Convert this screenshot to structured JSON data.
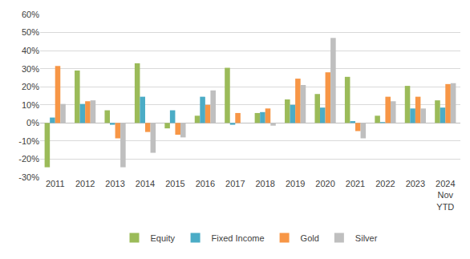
{
  "chart_data": {
    "type": "bar",
    "categories": [
      "2011",
      "2012",
      "2013",
      "2014",
      "2015",
      "2016",
      "2017",
      "2018",
      "2019",
      "2020",
      "2021",
      "2022",
      "2023",
      "2024 Nov YTD"
    ],
    "series": [
      {
        "name": "Equity",
        "color": "#9bbb59",
        "values": [
          -24.5,
          29,
          7,
          33,
          -3,
          4,
          30.5,
          5.5,
          13,
          16,
          25.5,
          4,
          20.5,
          12.5
        ]
      },
      {
        "name": "Fixed Income",
        "color": "#4bacc6",
        "values": [
          3,
          10.5,
          -1,
          14.5,
          7,
          14.5,
          -1,
          6,
          10,
          8.5,
          1,
          0.5,
          8,
          8.5
        ]
      },
      {
        "name": "Gold",
        "color": "#f79646",
        "values": [
          31.5,
          12,
          -8.5,
          -5,
          -6.5,
          10,
          5.5,
          8,
          24.5,
          28,
          -4.5,
          14.5,
          14.5,
          21.5
        ]
      },
      {
        "name": "Silver",
        "color": "#bfbfbf",
        "values": [
          10.5,
          12.5,
          -24.5,
          -16.5,
          -8,
          18,
          0,
          -1.5,
          21,
          47,
          -8.5,
          12,
          8,
          22
        ]
      }
    ],
    "ylim": [
      -30,
      60
    ],
    "yticks": [
      {
        "value": -30,
        "label": "-30%"
      },
      {
        "value": -20,
        "label": "-20%"
      },
      {
        "value": -10,
        "label": "-10%"
      },
      {
        "value": 0,
        "label": "0%"
      },
      {
        "value": 10,
        "label": "10%"
      },
      {
        "value": 20,
        "label": "20%"
      },
      {
        "value": 30,
        "label": "30%"
      },
      {
        "value": 40,
        "label": "40%"
      },
      {
        "value": 50,
        "label": "50%"
      },
      {
        "value": 60,
        "label": "60%"
      }
    ],
    "grid": true,
    "legend": "bottom"
  }
}
